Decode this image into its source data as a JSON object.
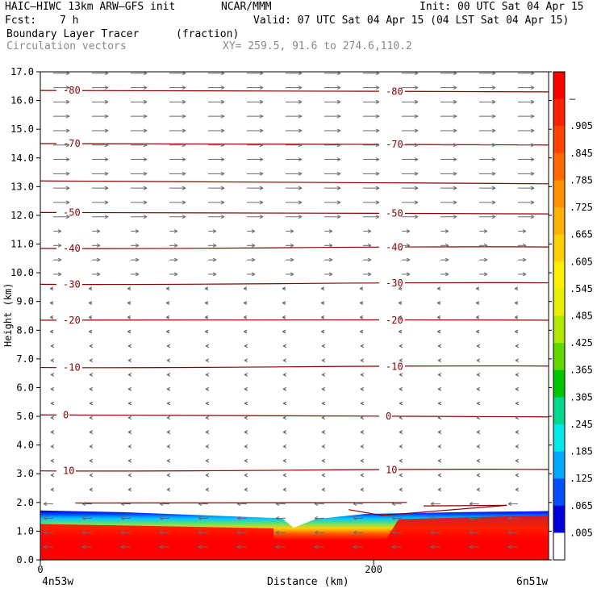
{
  "header": {
    "model": "HAIC–HIWC 13km ARW–GFS init",
    "org": "NCAR/MMM",
    "init": "Init: 00 UTC Sat 04 Apr 15",
    "fcst_label": "Fcst:",
    "fcst_value": "7 h",
    "valid": "Valid: 07 UTC Sat 04 Apr 15 (04 LST Sat 04 Apr 15)",
    "field": "Boundary Layer Tracer",
    "units": "(fraction)",
    "vectors": "Circulation vectors",
    "xy": "XY= 259.5, 91.6 to 274.6,110.2"
  },
  "chart_data": {
    "type": "heatmap",
    "xlabel": "Distance (km)",
    "ylabel": "Height (km)",
    "xlim": [
      0,
      305
    ],
    "ylim": [
      0,
      17
    ],
    "x_ticks": [
      {
        "value": 0,
        "label": "0"
      },
      {
        "value": 200,
        "label": "200"
      }
    ],
    "x_endpoints": {
      "left": "4n53w",
      "right": "6n51w"
    },
    "y_ticks": [
      0.0,
      1.0,
      2.0,
      3.0,
      4.0,
      5.0,
      6.0,
      7.0,
      8.0,
      9.0,
      10.0,
      11.0,
      12.0,
      13.0,
      14.0,
      15.0,
      16.0,
      17.0
    ],
    "y_tick_labels": [
      "0.0",
      "1.0",
      "2.0",
      "3.0",
      "4.0",
      "5.0",
      "6.0",
      "7.0",
      "8.0",
      "9.0",
      "10.0",
      "11.0",
      "12.0",
      "13.0",
      "14.0",
      "15.0",
      "16.0",
      "17.0"
    ],
    "colorbar": {
      "labels": [
        "–",
        ".905",
        ".845",
        ".785",
        ".725",
        ".665",
        ".605",
        ".545",
        ".485",
        ".425",
        ".365",
        ".305",
        ".245",
        ".185",
        ".125",
        ".065",
        ".005"
      ],
      "colors": [
        "#ff0000",
        "#ff2200",
        "#ff4400",
        "#ff6a00",
        "#ff9000",
        "#ffb000",
        "#ffd000",
        "#ffee00",
        "#e8f000",
        "#b0e800",
        "#60d800",
        "#00c800",
        "#00d890",
        "#00e8e8",
        "#00a8ff",
        "#0050ff",
        "#0000dd",
        "#ffffff"
      ]
    },
    "tracer_top_km": [
      {
        "x": 0,
        "y": 1.72
      },
      {
        "x": 50,
        "y": 1.66
      },
      {
        "x": 100,
        "y": 1.55
      },
      {
        "x": 145,
        "y": 1.45
      },
      {
        "x": 152,
        "y": 1.12
      },
      {
        "x": 165,
        "y": 1.42
      },
      {
        "x": 195,
        "y": 1.6
      },
      {
        "x": 250,
        "y": 1.66
      },
      {
        "x": 305,
        "y": 1.7
      }
    ],
    "isotherms": [
      {
        "value": -80,
        "label": "-80",
        "y": [
          16.35,
          16.3
        ]
      },
      {
        "value": -70,
        "label": "-70",
        "y": [
          14.5,
          14.45
        ]
      },
      {
        "value": -60,
        "label": "",
        "y": [
          13.2,
          13.1
        ]
      },
      {
        "value": -50,
        "label": "-50",
        "y": [
          12.1,
          12.05
        ]
      },
      {
        "value": -40,
        "label": "-40",
        "y": [
          10.85,
          10.9
        ]
      },
      {
        "value": -30,
        "label": "-30",
        "y": [
          9.6,
          9.65
        ]
      },
      {
        "value": -20,
        "label": "-20",
        "y": [
          8.35,
          8.35
        ]
      },
      {
        "value": -10,
        "label": "-10",
        "y": [
          6.7,
          6.75
        ]
      },
      {
        "value": 0,
        "label": "0",
        "y": [
          5.05,
          4.98
        ]
      },
      {
        "value": 10,
        "label": "10",
        "y": [
          3.1,
          3.15
        ]
      }
    ]
  }
}
